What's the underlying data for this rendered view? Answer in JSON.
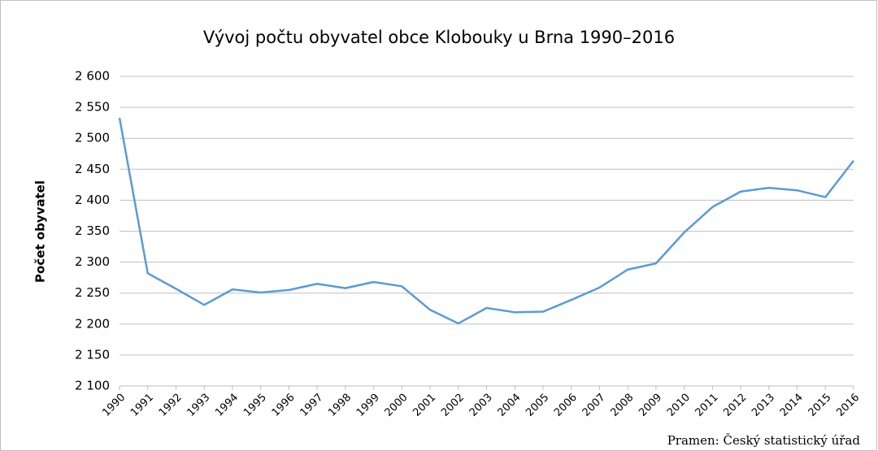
{
  "chart_data": {
    "type": "line",
    "title": "Vývoj počtu obyvatel obce Klobouky u Brna 1990–2016",
    "y_label": "Počet obyvatel",
    "source": "Pramen: Český statistický úřad",
    "categories": [
      "1990",
      "1991",
      "1992",
      "1993",
      "1994",
      "1995",
      "1996",
      "1997",
      "1998",
      "1999",
      "2000",
      "2001",
      "2002",
      "2003",
      "2004",
      "2005",
      "2006",
      "2007",
      "2008",
      "2009",
      "2010",
      "2011",
      "2012",
      "2013",
      "2014",
      "2015",
      "2016"
    ],
    "series": [
      {
        "name": "Počet obyvatel",
        "color": "#5b9bd5",
        "values": [
          2533,
          2282,
          2257,
          2231,
          2256,
          2251,
          2255,
          2265,
          2258,
          2268,
          2261,
          2223,
          2201,
          2226,
          2219,
          2220,
          2239,
          2259,
          2288,
          2298,
          2348,
          2389,
          2414,
          2420,
          2416,
          2405,
          2464
        ]
      }
    ],
    "ylim": [
      2100,
      2600
    ],
    "yticks": [
      {
        "value": 2100,
        "label": "2 100"
      },
      {
        "value": 2150,
        "label": "2 150"
      },
      {
        "value": 2200,
        "label": "2 200"
      },
      {
        "value": 2250,
        "label": "2 250"
      },
      {
        "value": 2300,
        "label": "2 300"
      },
      {
        "value": 2350,
        "label": "2 350"
      },
      {
        "value": 2400,
        "label": "2 400"
      },
      {
        "value": 2450,
        "label": "2 450"
      },
      {
        "value": 2500,
        "label": "2 500"
      },
      {
        "value": 2550,
        "label": "2 550"
      },
      {
        "value": 2600,
        "label": "2 600"
      }
    ],
    "grid": true
  }
}
